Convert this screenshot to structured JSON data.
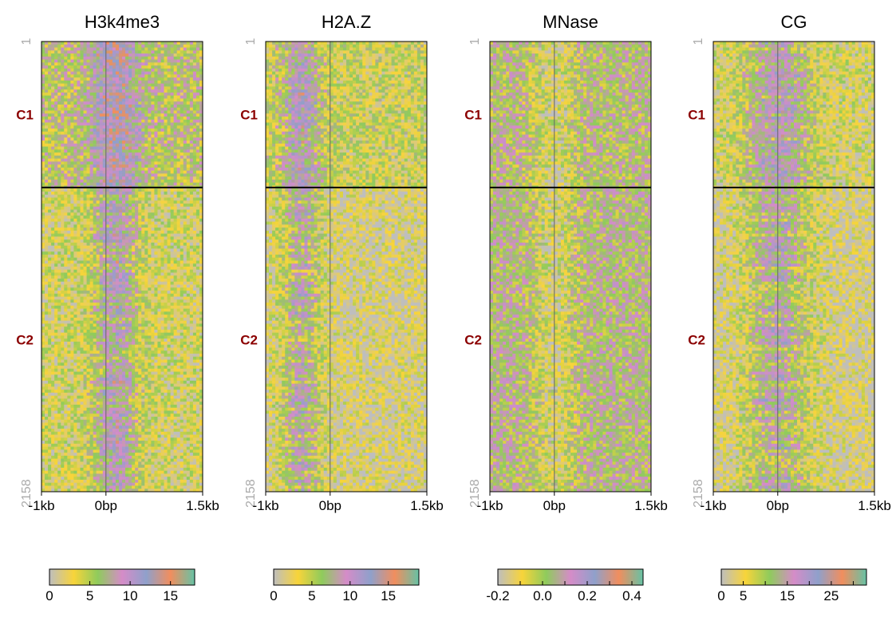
{
  "chart_data": [
    {
      "type": "heatmap",
      "title": "H3k4me3",
      "x_ticks": [
        "-1kb",
        "0bp",
        "1.5kb"
      ],
      "x_range_bp": [
        -1000,
        1500
      ],
      "row_range": [
        "1",
        "2158"
      ],
      "row_start_label": "1",
      "row_end_label": "2158",
      "clusters": [
        {
          "label": "C1",
          "rows": [
            1,
            700
          ]
        },
        {
          "label": "C2",
          "rows": [
            701,
            2158
          ]
        }
      ],
      "color_scale": {
        "min": 0,
        "max": 18,
        "ticks": [
          0,
          5,
          10,
          15
        ],
        "tick_labels": [
          "0",
          "5",
          "10",
          "15"
        ],
        "colors": [
          "#BEBEBE",
          "#F8D43A",
          "#8FCB5C",
          "#D58CC8",
          "#8FA0CB",
          "#F18E5E",
          "#66C2A5"
        ]
      },
      "profile": {
        "peak_bp": 150,
        "peak_width_bp": 350,
        "background": 3,
        "peak": 9,
        "c1_flank": 7
      }
    },
    {
      "type": "heatmap",
      "title": "H2A.Z",
      "x_ticks": [
        "-1kb",
        "0bp",
        "1.5kb"
      ],
      "x_range_bp": [
        -1000,
        1500
      ],
      "row_range": [
        "1",
        "2158"
      ],
      "row_start_label": "1",
      "row_end_label": "2158",
      "clusters": [
        {
          "label": "C1",
          "rows": [
            1,
            700
          ]
        },
        {
          "label": "C2",
          "rows": [
            701,
            2158
          ]
        }
      ],
      "color_scale": {
        "min": 0,
        "max": 19,
        "ticks": [
          0,
          5,
          10,
          15
        ],
        "tick_labels": [
          "0",
          "5",
          "10",
          "15"
        ],
        "colors": [
          "#BEBEBE",
          "#F8D43A",
          "#8FCB5C",
          "#D58CC8",
          "#8FA0CB",
          "#F18E5E",
          "#66C2A5"
        ]
      },
      "profile": {
        "peak_bp": -450,
        "peak_width_bp": 300,
        "background": 2,
        "peak": 8,
        "c1_flank": 5
      }
    },
    {
      "type": "heatmap",
      "title": "MNase",
      "x_ticks": [
        "-1kb",
        "0bp",
        "1.5kb"
      ],
      "x_range_bp": [
        -1000,
        1500
      ],
      "row_range": [
        "1",
        "2158"
      ],
      "row_start_label": "1",
      "row_end_label": "2158",
      "clusters": [
        {
          "label": "C1",
          "rows": [
            1,
            700
          ]
        },
        {
          "label": "C2",
          "rows": [
            701,
            2158
          ]
        }
      ],
      "color_scale": {
        "min": -0.2,
        "max": 0.45,
        "ticks": [
          -0.2,
          0.0,
          0.2,
          0.4
        ],
        "tick_labels": [
          "-0.2",
          "0.0",
          "0.2",
          "0.4"
        ],
        "minor_ticks": [
          -0.1,
          0.1,
          0.3
        ],
        "colors": [
          "#BEBEBE",
          "#F8D43A",
          "#8FCB5C",
          "#D58CC8",
          "#8FA0CB",
          "#F18E5E",
          "#66C2A5"
        ]
      },
      "profile": {
        "peak_bp": 0,
        "peak_width_bp": 300,
        "background": 0.05,
        "peak": -0.1,
        "c1_flank": 0.03
      }
    },
    {
      "type": "heatmap",
      "title": "CG",
      "x_ticks": [
        "-1kb",
        "0bp",
        "1.5kb"
      ],
      "x_range_bp": [
        -1000,
        1500
      ],
      "row_range": [
        "1",
        "2158"
      ],
      "row_start_label": "1",
      "row_end_label": "2158",
      "clusters": [
        {
          "label": "C1",
          "rows": [
            1,
            700
          ]
        },
        {
          "label": "C2",
          "rows": [
            701,
            2158
          ]
        }
      ],
      "color_scale": {
        "min": 0,
        "max": 33,
        "ticks": [
          0,
          5,
          15,
          25
        ],
        "tick_labels": [
          "0",
          "5",
          "15",
          "25"
        ],
        "minor_ticks": [
          10,
          20,
          30
        ],
        "colors": [
          "#BEBEBE",
          "#F8D43A",
          "#8FCB5C",
          "#D58CC8",
          "#8FA0CB",
          "#F18E5E",
          "#66C2A5"
        ]
      },
      "profile": {
        "peak_bp": 0,
        "peak_width_bp": 500,
        "background": 3,
        "peak": 14,
        "c1_flank": 6
      }
    }
  ]
}
